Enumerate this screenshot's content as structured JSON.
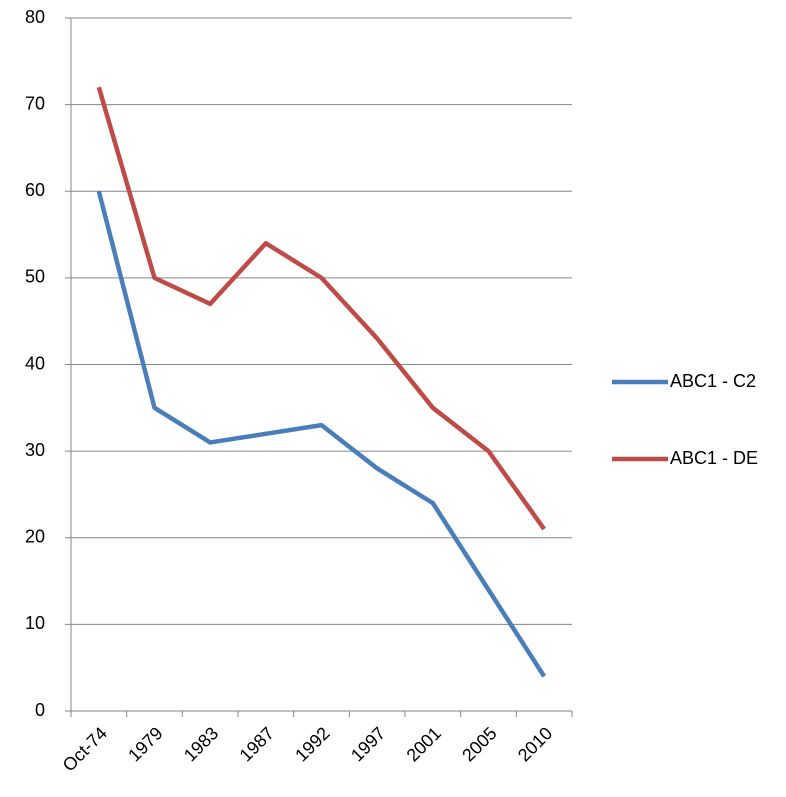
{
  "chart_data": {
    "type": "line",
    "categories": [
      "Oct-74",
      "1979",
      "1983",
      "1987",
      "1992",
      "1997",
      "2001",
      "2005",
      "2010"
    ],
    "series": [
      {
        "name": "ABC1 - C2",
        "color": "#4a7ebb",
        "values": [
          60,
          35,
          31,
          32,
          33,
          28,
          24,
          14,
          4
        ]
      },
      {
        "name": "ABC1 - DE",
        "color": "#be4b48",
        "values": [
          72,
          50,
          47,
          54,
          50,
          43,
          35,
          30,
          21
        ]
      }
    ],
    "ylim": [
      0,
      80
    ],
    "yticks": [
      0,
      10,
      20,
      30,
      40,
      50,
      60,
      70,
      80
    ],
    "grid": true,
    "legend": "right"
  }
}
